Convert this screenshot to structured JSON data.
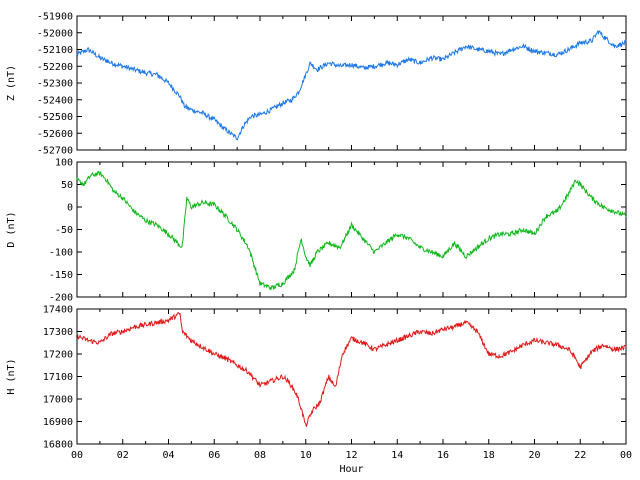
{
  "chart_data": [
    {
      "type": "line",
      "ylabel": "Z (nT)",
      "ylim": [
        -52700,
        -51900
      ],
      "yticks": [
        -51900,
        -52000,
        -52100,
        -52200,
        -52300,
        -52400,
        -52500,
        -52600,
        -52700
      ],
      "color": "#1e78e6",
      "xlim": [
        0,
        24
      ],
      "series": [
        {
          "x": [
            0,
            0.5,
            1,
            1.5,
            2,
            2.5,
            3,
            3.5,
            4,
            4.5,
            4.7,
            5,
            5.5,
            6,
            6.5,
            7,
            7.3,
            7.6,
            8,
            8.5,
            9,
            9.4,
            9.7,
            10,
            10.2,
            10.5,
            11,
            11.5,
            12,
            12.5,
            13,
            13.5,
            14,
            14.5,
            15,
            15.5,
            16,
            16.5,
            17,
            17.5,
            18,
            18.5,
            19,
            19.5,
            20,
            20.5,
            21,
            21.5,
            22,
            22.5,
            22.8,
            23,
            23.5,
            24
          ],
          "values": [
            -52130,
            -52100,
            -52150,
            -52180,
            -52200,
            -52220,
            -52240,
            -52250,
            -52300,
            -52380,
            -52440,
            -52460,
            -52480,
            -52520,
            -52580,
            -52630,
            -52550,
            -52500,
            -52490,
            -52460,
            -52420,
            -52400,
            -52350,
            -52250,
            -52180,
            -52220,
            -52180,
            -52200,
            -52190,
            -52210,
            -52200,
            -52180,
            -52190,
            -52160,
            -52180,
            -52150,
            -52160,
            -52120,
            -52080,
            -52100,
            -52110,
            -52130,
            -52100,
            -52080,
            -52110,
            -52120,
            -52130,
            -52100,
            -52060,
            -52050,
            -51990,
            -52020,
            -52080,
            -52060
          ]
        }
      ]
    },
    {
      "type": "line",
      "ylabel": "D (nT)",
      "ylim": [
        -200,
        100
      ],
      "yticks": [
        100,
        50,
        0,
        -50,
        -100,
        -150,
        -200
      ],
      "color": "#10b81c",
      "xlim": [
        0,
        24
      ],
      "series": [
        {
          "x": [
            0,
            0.3,
            0.6,
            1,
            1.3,
            1.6,
            2,
            2.5,
            3,
            3.5,
            4,
            4.4,
            4.6,
            4.8,
            5,
            5.5,
            6,
            6.5,
            7,
            7.5,
            8,
            8.5,
            9,
            9.5,
            9.8,
            10,
            10.2,
            10.5,
            11,
            11.5,
            12,
            12.5,
            13,
            13.5,
            14,
            14.5,
            15,
            15.5,
            16,
            16.5,
            17,
            17.5,
            18,
            18.5,
            19,
            19.5,
            20,
            20.5,
            21,
            21.5,
            21.8,
            22,
            22.5,
            23,
            23.5,
            24
          ],
          "values": [
            60,
            50,
            70,
            75,
            60,
            35,
            20,
            -10,
            -30,
            -40,
            -60,
            -80,
            -90,
            20,
            0,
            10,
            5,
            -20,
            -50,
            -90,
            -170,
            -180,
            -170,
            -140,
            -70,
            -110,
            -130,
            -100,
            -80,
            -90,
            -40,
            -70,
            -100,
            -80,
            -60,
            -70,
            -90,
            -100,
            -110,
            -80,
            -110,
            -90,
            -70,
            -60,
            -60,
            -50,
            -60,
            -20,
            -10,
            30,
            60,
            50,
            20,
            0,
            -10,
            -20
          ]
        }
      ]
    },
    {
      "type": "line",
      "ylabel": "H (nT)",
      "ylim": [
        16800,
        17400
      ],
      "yticks": [
        17400,
        17300,
        17200,
        17100,
        17000,
        16900,
        16800
      ],
      "xlabel": "Hour",
      "xticks": [
        "00",
        "02",
        "04",
        "06",
        "08",
        "10",
        "12",
        "14",
        "16",
        "18",
        "20",
        "22",
        "00"
      ],
      "color": "#e01a1a",
      "xlim": [
        0,
        24
      ],
      "series": [
        {
          "x": [
            0,
            0.5,
            1,
            1.5,
            2,
            2.5,
            3,
            3.5,
            4,
            4.5,
            4.6,
            5,
            5.5,
            6,
            6.5,
            7,
            7.5,
            8,
            8.5,
            9,
            9.3,
            9.6,
            9.8,
            10,
            10.3,
            10.6,
            11,
            11.3,
            11.6,
            12,
            12.5,
            13,
            13.5,
            14,
            14.5,
            15,
            15.5,
            16,
            16.5,
            17,
            17.5,
            18,
            18.5,
            19,
            19.5,
            20,
            20.5,
            21,
            21.5,
            21.8,
            22,
            22.5,
            23,
            23.5,
            24
          ],
          "values": [
            17280,
            17260,
            17250,
            17290,
            17300,
            17320,
            17330,
            17340,
            17350,
            17380,
            17300,
            17260,
            17230,
            17200,
            17180,
            17150,
            17120,
            17060,
            17080,
            17100,
            17070,
            17020,
            16960,
            16880,
            16950,
            16980,
            17100,
            17050,
            17200,
            17270,
            17250,
            17220,
            17240,
            17260,
            17280,
            17300,
            17290,
            17310,
            17320,
            17340,
            17300,
            17200,
            17190,
            17210,
            17240,
            17260,
            17250,
            17240,
            17220,
            17180,
            17140,
            17210,
            17240,
            17220,
            17230
          ]
        }
      ]
    }
  ]
}
